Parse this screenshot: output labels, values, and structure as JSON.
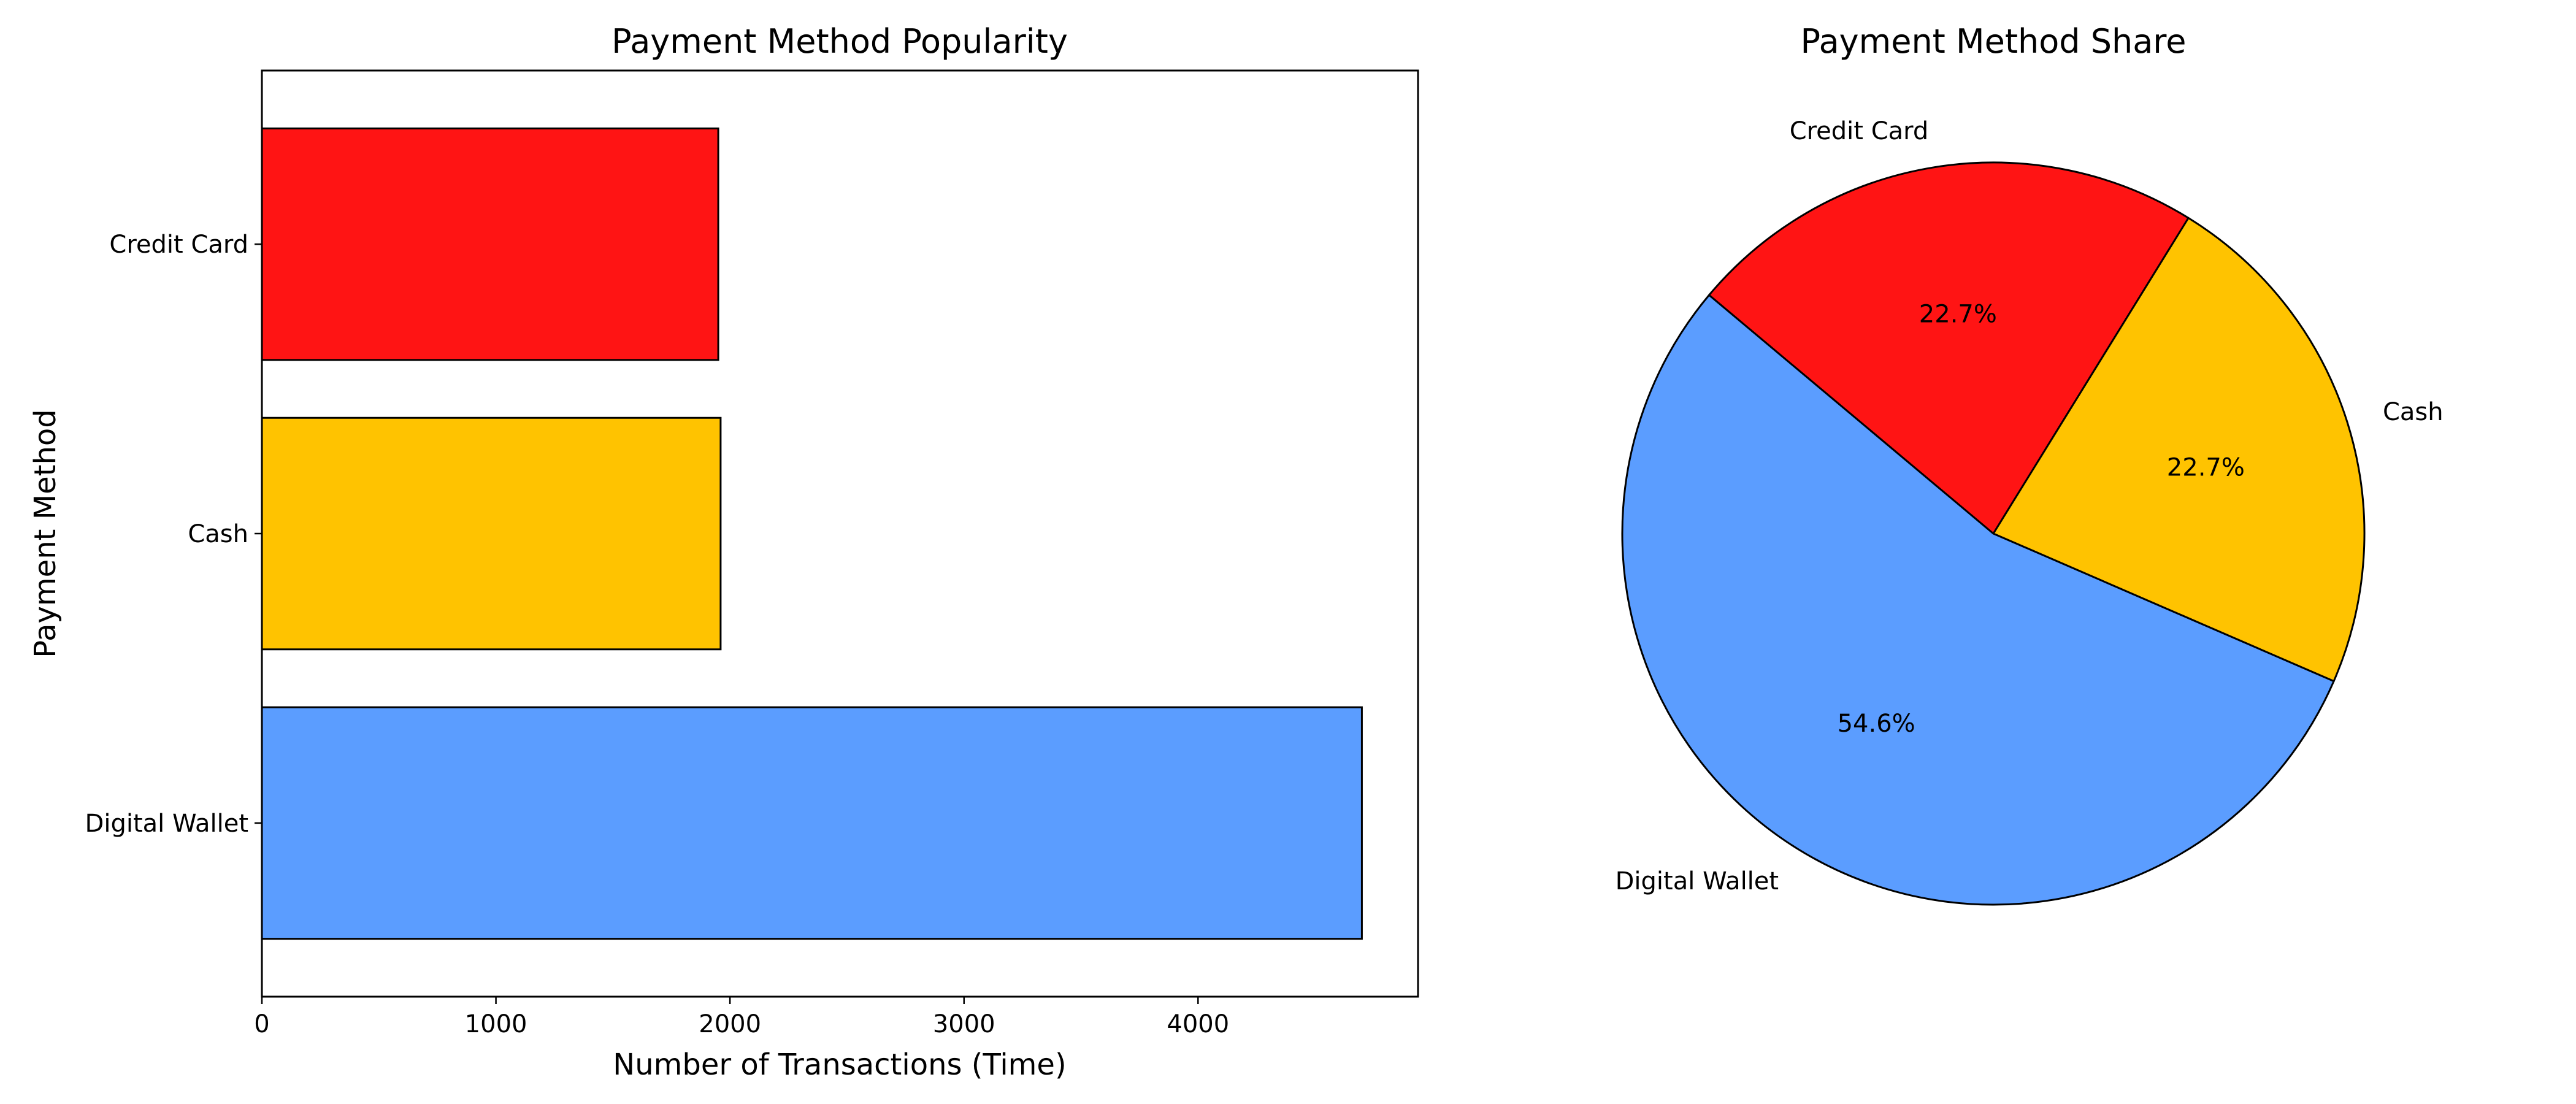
{
  "chart_data": [
    {
      "type": "bar",
      "orientation": "horizontal",
      "title": "Payment Method Popularity",
      "xlabel": "Number of Transactions (Time)",
      "ylabel": "Payment Method",
      "categories": [
        "Digital Wallet",
        "Cash",
        "Credit Card"
      ],
      "values": [
        4700,
        1960,
        1950
      ],
      "colors": [
        "#5b9dff",
        "#ffc300",
        "#ff1414"
      ],
      "xlim": [
        0,
        4940
      ],
      "xticks": [
        0,
        1000,
        2000,
        3000,
        4000
      ],
      "grid": false
    },
    {
      "type": "pie",
      "title": "Payment Method Share",
      "labels": [
        "Credit Card",
        "Cash",
        "Digital Wallet"
      ],
      "percent_labels": [
        "22.7%",
        "22.7%",
        "54.6%"
      ],
      "values": [
        22.7,
        22.7,
        54.6
      ],
      "colors": [
        "#ff1414",
        "#ffc300",
        "#5b9dff"
      ],
      "start_angle_deg": 140,
      "direction": "clockwise"
    }
  ]
}
